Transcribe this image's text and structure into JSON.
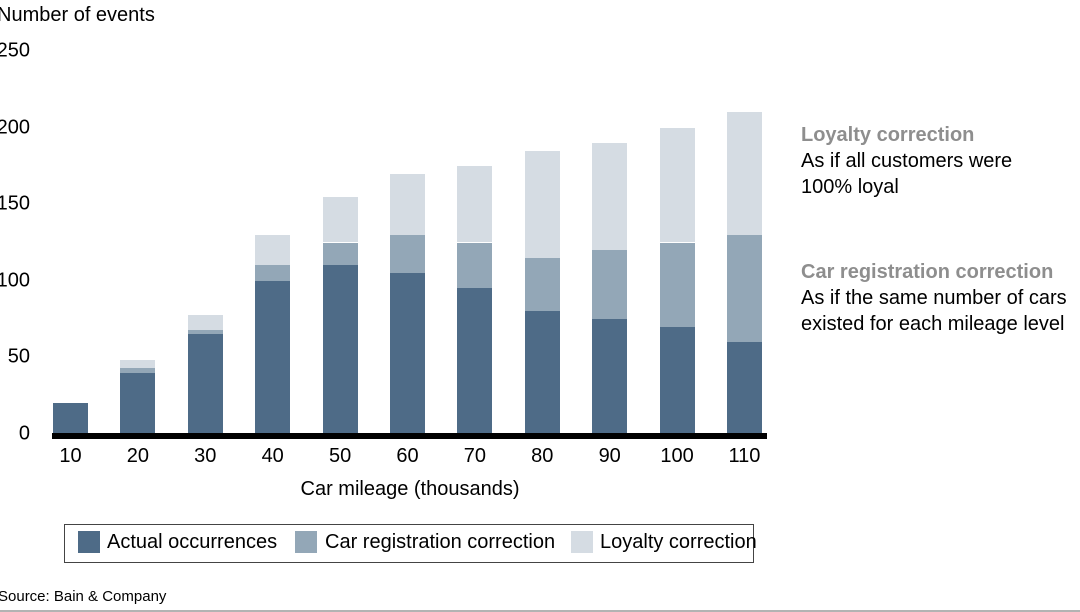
{
  "title": "Number of events",
  "x_axis": {
    "label": "Car mileage (thousands)"
  },
  "y_axis": {
    "ticks": [
      0,
      50,
      100,
      150,
      200,
      250
    ]
  },
  "chart_data": {
    "type": "bar",
    "stacked": true,
    "title": "Number of events",
    "xlabel": "Car mileage (thousands)",
    "ylabel": "Number of events",
    "ylim": [
      0,
      250
    ],
    "grid": false,
    "legend_position": "bottom",
    "categories": [
      10,
      20,
      30,
      40,
      50,
      60,
      70,
      80,
      90,
      100,
      110
    ],
    "series": [
      {
        "name": "Actual occurrences",
        "color": "#4E6B87",
        "values": [
          20,
          40,
          65,
          100,
          110,
          105,
          95,
          80,
          75,
          70,
          60
        ]
      },
      {
        "name": "Car registration correction",
        "color": "#93A7B7",
        "values": [
          0,
          3,
          3,
          10,
          15,
          25,
          30,
          35,
          45,
          55,
          70
        ]
      },
      {
        "name": "Loyalty correction",
        "color": "#D5DCE3",
        "values": [
          0,
          5,
          10,
          20,
          30,
          40,
          50,
          70,
          70,
          75,
          80
        ]
      }
    ],
    "stack_totals": [
      20,
      48,
      78,
      130,
      155,
      170,
      175,
      185,
      190,
      200,
      210
    ]
  },
  "legend": {
    "items": [
      {
        "label": "Actual occurrences",
        "color": "#4E6B87"
      },
      {
        "label": "Car registration correction",
        "color": "#93A7B7"
      },
      {
        "label": "Loyalty correction",
        "color": "#D5DCE3"
      }
    ]
  },
  "annotations": [
    {
      "title": "Loyalty correction",
      "title_color": "#8E8E8E",
      "lines": [
        "As if all customers were",
        "100% loyal"
      ]
    },
    {
      "title": "Car registration correction",
      "title_color": "#8E8E8E",
      "lines": [
        "As if the same number of cars",
        "existed for each mileage level"
      ]
    }
  ],
  "source": "Source: Bain & Company",
  "colors": {
    "axis_line": "#000000",
    "text": "#000000",
    "annotation_title": "#8E8E8E",
    "legend_border": "#444444",
    "bottom_rule": "#B3B3B3",
    "background": "#FFFFFF"
  }
}
